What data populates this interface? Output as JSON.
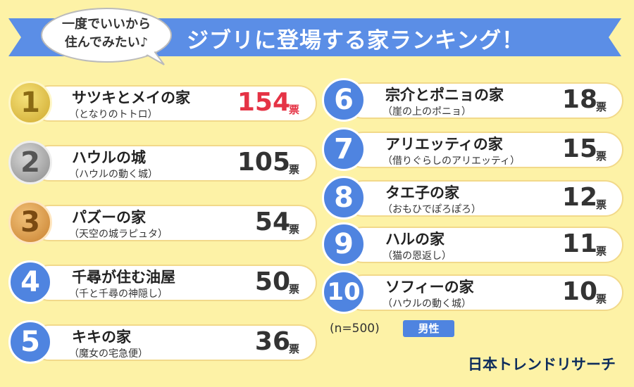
{
  "header": {
    "title": "ジブリに登場する家ランキング！",
    "bubble_line1": "一度でいいから",
    "bubble_line2": "住んでみたい♪"
  },
  "chart_data": {
    "type": "table",
    "title": "ジブリに登場する家ランキング！",
    "unit": "票",
    "rows": [
      {
        "rank": "1",
        "name": "サツキとメイの家",
        "film": "（となりのトトロ）",
        "votes": 154
      },
      {
        "rank": "2",
        "name": "ハウルの城",
        "film": "（ハウルの動く城）",
        "votes": 105
      },
      {
        "rank": "3",
        "name": "パズーの家",
        "film": "（天空の城ラピュタ）",
        "votes": 54
      },
      {
        "rank": "4",
        "name": "千尋が住む油屋",
        "film": "（千と千尋の神隠し）",
        "votes": 50
      },
      {
        "rank": "5",
        "name": "キキの家",
        "film": "（魔女の宅急便）",
        "votes": 36
      },
      {
        "rank": "6",
        "name": "宗介とポニョの家",
        "film": "（崖の上のポニョ）",
        "votes": 18
      },
      {
        "rank": "7",
        "name": "アリエッティの家",
        "film": "（借りぐらしのアリエッティ）",
        "votes": 15
      },
      {
        "rank": "8",
        "name": "タエ子の家",
        "film": "（おもひでぽろぽろ）",
        "votes": 12
      },
      {
        "rank": "9",
        "name": "ハルの家",
        "film": "（猫の恩返し）",
        "votes": 11
      },
      {
        "rank": "10",
        "name": "ソフィーの家",
        "film": "（ハウルの動く城）",
        "votes": 10
      }
    ]
  },
  "footer": {
    "sample": "(n=500)",
    "gender": "男性",
    "brand": "日本トレンドリサーチ"
  },
  "colors": {
    "background": "#fdf2a6",
    "ribbon": "#5b8ee6",
    "badge_blue": "#4f84e0",
    "highlight": "#e53345"
  }
}
